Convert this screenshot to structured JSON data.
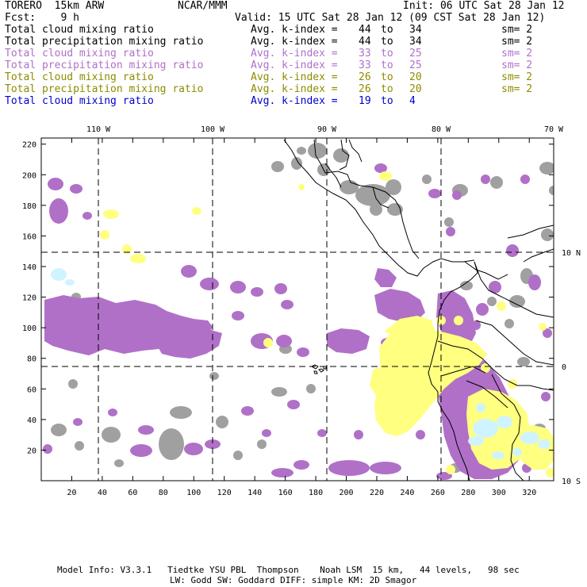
{
  "header": {
    "model": "TORERO  15km ARW",
    "org": "NCAR/MMM",
    "init": "Init: 06 UTC Sat 28 Jan 12",
    "fcst": "Fcst:    9 h",
    "valid": "Valid: 15 UTC Sat 28 Jan 12 (09 CST Sat 28 Jan 12)"
  },
  "legend": [
    {
      "field": "Total cloud mixing ratio",
      "avg": "Avg. k-index =",
      "from": "44",
      "to_word": "to",
      "to": "34",
      "sm": "sm= 2",
      "color": "#000000"
    },
    {
      "field": "Total precipitation mixing ratio",
      "avg": "Avg. k-index =",
      "from": "44",
      "to_word": "to",
      "to": "34",
      "sm": "sm= 2",
      "color": "#000000"
    },
    {
      "field": "Total cloud mixing ratio",
      "avg": "Avg. k-index =",
      "from": "33",
      "to_word": "to",
      "to": "25",
      "sm": "sm= 2",
      "color": "#b070c8"
    },
    {
      "field": "Total precipitation mixing ratio",
      "avg": "Avg. k-index =",
      "from": "33",
      "to_word": "to",
      "to": "25",
      "sm": "sm= 2",
      "color": "#b070c8"
    },
    {
      "field": "Total cloud mixing ratio",
      "avg": "Avg. k-index =",
      "from": "26",
      "to_word": "to",
      "to": "20",
      "sm": "sm= 2",
      "color": "#8c8c00"
    },
    {
      "field": "Total precipitation mixing ratio",
      "avg": "Avg. k-index =",
      "from": "26",
      "to_word": "to",
      "to": "20",
      "sm": "sm= 2",
      "color": "#8c8c00"
    },
    {
      "field": "Total cloud mixing ratio",
      "avg": "Avg. k-index =",
      "from": "19",
      "to_word": "to",
      "to": "4",
      "sm": "",
      "color": "#0000d0"
    }
  ],
  "map": {
    "longitude_labels": [
      "110 W",
      "100 W",
      "90 W",
      "80 W",
      "70 W"
    ],
    "latitude_labels": [
      "10 N",
      "0",
      "10 S"
    ],
    "x_ticks": [
      "20",
      "40",
      "60",
      "80",
      "100",
      "120",
      "140",
      "160",
      "180",
      "200",
      "220",
      "240",
      "260",
      "280",
      "300",
      "320"
    ],
    "y_ticks": [
      "20",
      "40",
      "60",
      "80",
      "100",
      "120",
      "140",
      "160",
      "180",
      "200",
      "220"
    ],
    "colors": {
      "gray": "#a0a0a0",
      "purple": "#b070c8",
      "yellow": "#ffff80",
      "light_cyan": "#d0f4ff",
      "frame": "#000000"
    }
  },
  "footer": {
    "line1": "Model Info: V3.3.1   Tiedtke YSU PBL  Thompson    Noah LSM  15 km,   44 levels,   98 sec",
    "line2": "LW: Godd SW: Goddard DIFF: simple KM: 2D Smagor"
  }
}
